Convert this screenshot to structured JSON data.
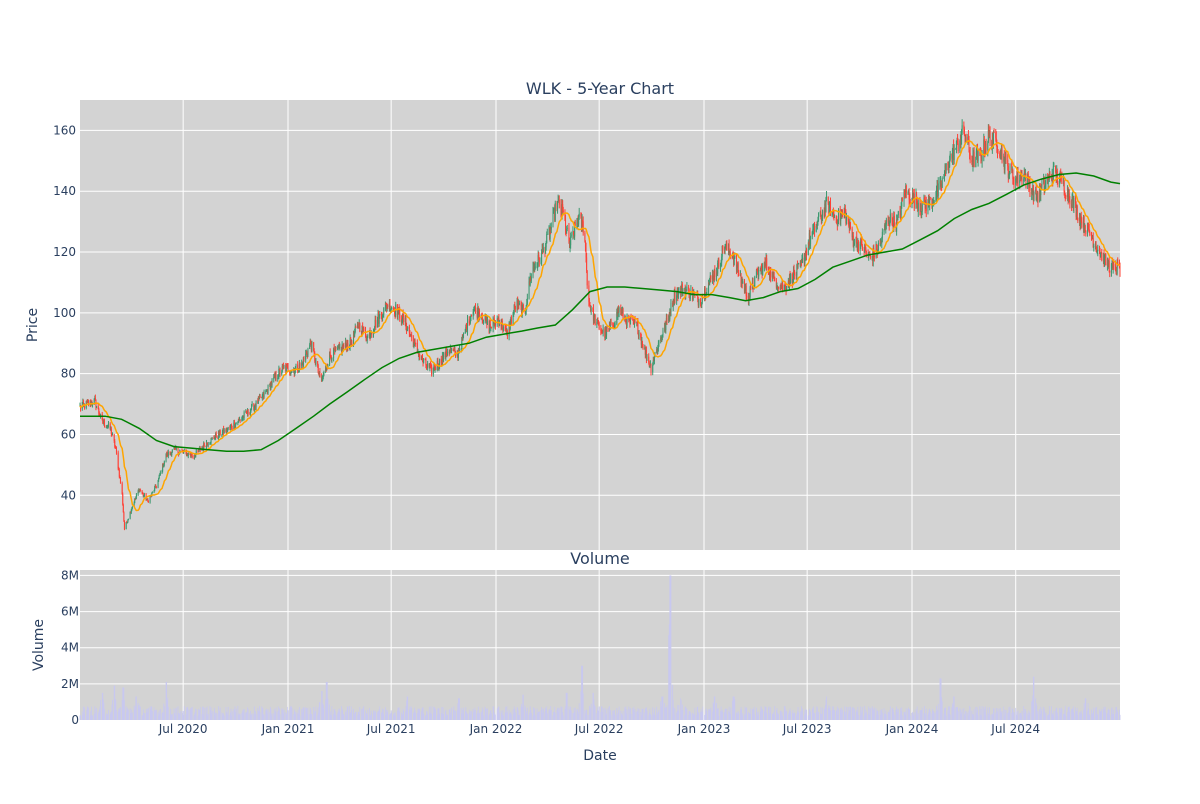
{
  "chart_data": [
    {
      "type": "candlestick",
      "title": "WLK - 5-Year Chart",
      "xlabel": "",
      "ylabel": "Price",
      "ylim": [
        22,
        170
      ],
      "xlim": [
        "2020-01-02",
        "2024-12-31"
      ],
      "y_ticks": [
        40,
        60,
        80,
        100,
        120,
        140,
        160
      ],
      "grid": true,
      "legend": "none",
      "candle_up_color": "#3d9970",
      "candle_down_color": "#ff4136",
      "price_path": [
        [
          "2020-01-02",
          69
        ],
        [
          "2020-01-15",
          70
        ],
        [
          "2020-01-28",
          71
        ],
        [
          "2020-02-10",
          64
        ],
        [
          "2020-02-24",
          62
        ],
        [
          "2020-03-05",
          55
        ],
        [
          "2020-03-16",
          40
        ],
        [
          "2020-03-20",
          29
        ],
        [
          "2020-04-02",
          36
        ],
        [
          "2020-04-15",
          42
        ],
        [
          "2020-04-30",
          38
        ],
        [
          "2020-05-15",
          43
        ],
        [
          "2020-06-01",
          53
        ],
        [
          "2020-06-15",
          55
        ],
        [
          "2020-07-01",
          54
        ],
        [
          "2020-07-20",
          53
        ],
        [
          "2020-08-10",
          57
        ],
        [
          "2020-09-01",
          60
        ],
        [
          "2020-09-20",
          62
        ],
        [
          "2020-10-10",
          65
        ],
        [
          "2020-11-01",
          69
        ],
        [
          "2020-11-20",
          73
        ],
        [
          "2020-12-10",
          79
        ],
        [
          "2020-12-25",
          82
        ],
        [
          "2021-01-10",
          81
        ],
        [
          "2021-01-25",
          83
        ],
        [
          "2021-02-10",
          90
        ],
        [
          "2021-02-28",
          77
        ],
        [
          "2021-03-15",
          86
        ],
        [
          "2021-04-01",
          88
        ],
        [
          "2021-04-20",
          90
        ],
        [
          "2021-05-05",
          96
        ],
        [
          "2021-05-20",
          92
        ],
        [
          "2021-06-05",
          97
        ],
        [
          "2021-06-25",
          103
        ],
        [
          "2021-07-10",
          101
        ],
        [
          "2021-07-25",
          97
        ],
        [
          "2021-08-10",
          90
        ],
        [
          "2021-08-25",
          84
        ],
        [
          "2021-09-10",
          81
        ],
        [
          "2021-09-25",
          84
        ],
        [
          "2021-10-10",
          88
        ],
        [
          "2021-10-25",
          86
        ],
        [
          "2021-11-05",
          92
        ],
        [
          "2021-11-20",
          101
        ],
        [
          "2021-12-05",
          100
        ],
        [
          "2021-12-20",
          95
        ],
        [
          "2022-01-05",
          98
        ],
        [
          "2022-01-20",
          93
        ],
        [
          "2022-02-05",
          103
        ],
        [
          "2022-02-20",
          100
        ],
        [
          "2022-03-05",
          114
        ],
        [
          "2022-03-20",
          118
        ],
        [
          "2022-04-05",
          126
        ],
        [
          "2022-04-18",
          136
        ],
        [
          "2022-04-28",
          133
        ],
        [
          "2022-05-10",
          122
        ],
        [
          "2022-05-25",
          131
        ],
        [
          "2022-06-05",
          128
        ],
        [
          "2022-06-12",
          104
        ],
        [
          "2022-06-25",
          97
        ],
        [
          "2022-07-10",
          93
        ],
        [
          "2022-07-25",
          96
        ],
        [
          "2022-08-05",
          101
        ],
        [
          "2022-08-20",
          97
        ],
        [
          "2022-09-05",
          96
        ],
        [
          "2022-09-20",
          87
        ],
        [
          "2022-09-30",
          82
        ],
        [
          "2022-10-15",
          91
        ],
        [
          "2022-10-30",
          98
        ],
        [
          "2022-11-10",
          106
        ],
        [
          "2022-11-25",
          108
        ],
        [
          "2022-12-10",
          106
        ],
        [
          "2022-12-25",
          104
        ],
        [
          "2023-01-10",
          110
        ],
        [
          "2023-01-25",
          115
        ],
        [
          "2023-02-05",
          122
        ],
        [
          "2023-02-20",
          119
        ],
        [
          "2023-03-05",
          112
        ],
        [
          "2023-03-20",
          105
        ],
        [
          "2023-04-05",
          113
        ],
        [
          "2023-04-20",
          116
        ],
        [
          "2023-05-05",
          111
        ],
        [
          "2023-05-20",
          108
        ],
        [
          "2023-06-05",
          112
        ],
        [
          "2023-06-20",
          115
        ],
        [
          "2023-07-05",
          124
        ],
        [
          "2023-07-20",
          130
        ],
        [
          "2023-08-05",
          136
        ],
        [
          "2023-08-20",
          131
        ],
        [
          "2023-09-05",
          133
        ],
        [
          "2023-09-20",
          124
        ],
        [
          "2023-10-05",
          122
        ],
        [
          "2023-10-20",
          118
        ],
        [
          "2023-11-05",
          122
        ],
        [
          "2023-11-20",
          131
        ],
        [
          "2023-12-05",
          129
        ],
        [
          "2023-12-20",
          140
        ],
        [
          "2024-01-05",
          137
        ],
        [
          "2024-01-20",
          135
        ],
        [
          "2024-02-05",
          137
        ],
        [
          "2024-02-20",
          141
        ],
        [
          "2024-03-05",
          150
        ],
        [
          "2024-03-20",
          155
        ],
        [
          "2024-04-01",
          160
        ],
        [
          "2024-04-15",
          150
        ],
        [
          "2024-05-01",
          152
        ],
        [
          "2024-05-15",
          158
        ],
        [
          "2024-06-01",
          155
        ],
        [
          "2024-06-15",
          148
        ],
        [
          "2024-07-01",
          144
        ],
        [
          "2024-07-15",
          146
        ],
        [
          "2024-08-05",
          138
        ],
        [
          "2024-08-20",
          142
        ],
        [
          "2024-09-05",
          146
        ],
        [
          "2024-09-20",
          143
        ],
        [
          "2024-10-05",
          138
        ],
        [
          "2024-10-20",
          132
        ],
        [
          "2024-11-05",
          127
        ],
        [
          "2024-11-20",
          122
        ],
        [
          "2024-12-05",
          117
        ],
        [
          "2024-12-20",
          114
        ],
        [
          "2024-12-31",
          115
        ]
      ],
      "sma_short_color": "#ffa500",
      "sma_long_color": "#008000",
      "sma_long": [
        [
          "2020-01-02",
          66
        ],
        [
          "2020-02-15",
          66
        ],
        [
          "2020-03-15",
          65
        ],
        [
          "2020-04-15",
          62
        ],
        [
          "2020-05-15",
          58
        ],
        [
          "2020-06-15",
          56
        ],
        [
          "2020-07-15",
          55.5
        ],
        [
          "2020-08-15",
          55
        ],
        [
          "2020-09-15",
          54.5
        ],
        [
          "2020-10-15",
          54.5
        ],
        [
          "2020-11-15",
          55
        ],
        [
          "2020-12-15",
          58
        ],
        [
          "2021-01-15",
          62
        ],
        [
          "2021-02-15",
          66
        ],
        [
          "2021-03-15",
          70
        ],
        [
          "2021-04-15",
          74
        ],
        [
          "2021-05-15",
          78
        ],
        [
          "2021-06-15",
          82
        ],
        [
          "2021-07-15",
          85
        ],
        [
          "2021-08-15",
          87
        ],
        [
          "2021-09-15",
          88
        ],
        [
          "2021-10-15",
          89
        ],
        [
          "2021-11-15",
          90
        ],
        [
          "2021-12-15",
          92
        ],
        [
          "2022-01-15",
          93
        ],
        [
          "2022-02-15",
          94
        ],
        [
          "2022-03-15",
          95
        ],
        [
          "2022-04-15",
          96
        ],
        [
          "2022-05-15",
          101
        ],
        [
          "2022-06-15",
          107
        ],
        [
          "2022-07-15",
          108.5
        ],
        [
          "2022-08-15",
          108.5
        ],
        [
          "2022-09-15",
          108
        ],
        [
          "2022-10-15",
          107.5
        ],
        [
          "2022-11-15",
          107
        ],
        [
          "2022-12-15",
          106
        ],
        [
          "2023-01-15",
          106
        ],
        [
          "2023-02-15",
          105
        ],
        [
          "2023-03-15",
          104
        ],
        [
          "2023-04-15",
          105
        ],
        [
          "2023-05-15",
          107
        ],
        [
          "2023-06-15",
          108
        ],
        [
          "2023-07-15",
          111
        ],
        [
          "2023-08-15",
          115
        ],
        [
          "2023-09-15",
          117
        ],
        [
          "2023-10-15",
          119
        ],
        [
          "2023-11-15",
          120
        ],
        [
          "2023-12-15",
          121
        ],
        [
          "2024-01-15",
          124
        ],
        [
          "2024-02-15",
          127
        ],
        [
          "2024-03-15",
          131
        ],
        [
          "2024-04-15",
          134
        ],
        [
          "2024-05-15",
          136
        ],
        [
          "2024-06-15",
          139
        ],
        [
          "2024-07-15",
          142
        ],
        [
          "2024-08-15",
          144
        ],
        [
          "2024-09-15",
          145.5
        ],
        [
          "2024-10-15",
          146
        ],
        [
          "2024-11-15",
          145
        ],
        [
          "2024-12-15",
          143
        ],
        [
          "2024-12-31",
          142.5
        ]
      ]
    },
    {
      "type": "bar",
      "title": "Volume",
      "xlabel": "Date",
      "ylabel": "Volume",
      "ylim": [
        0,
        8300000
      ],
      "y_ticks": [
        0,
        2000000,
        4000000,
        6000000,
        8000000
      ],
      "y_tick_labels": [
        "0",
        "2M",
        "4M",
        "6M",
        "8M"
      ],
      "x_ticks": [
        "2020-07-01",
        "2021-01-01",
        "2021-07-01",
        "2022-01-01",
        "2022-07-01",
        "2023-01-01",
        "2023-07-01",
        "2024-01-01",
        "2024-07-01"
      ],
      "x_tick_labels": [
        "Jul 2020",
        "Jan 2021",
        "Jul 2021",
        "Jan 2022",
        "Jul 2022",
        "Jan 2023",
        "Jul 2023",
        "Jan 2024",
        "Jul 2024"
      ],
      "bar_color": "#c8c8f0",
      "baseline_volume": 600000,
      "volume_spikes": [
        [
          "2020-02-10",
          1500000
        ],
        [
          "2020-03-02",
          1900000
        ],
        [
          "2020-03-18",
          1800000
        ],
        [
          "2020-04-10",
          1300000
        ],
        [
          "2020-06-01",
          2100000
        ],
        [
          "2021-03-01",
          1600000
        ],
        [
          "2021-03-10",
          2100000
        ],
        [
          "2021-07-30",
          1300000
        ],
        [
          "2021-10-28",
          1200000
        ],
        [
          "2022-02-18",
          1400000
        ],
        [
          "2022-05-05",
          1500000
        ],
        [
          "2022-06-01",
          3000000
        ],
        [
          "2022-06-20",
          1500000
        ],
        [
          "2022-10-20",
          1300000
        ],
        [
          "2022-11-01",
          2900000
        ],
        [
          "2022-11-03",
          8000000
        ],
        [
          "2022-11-20",
          1200000
        ],
        [
          "2023-01-20",
          1300000
        ],
        [
          "2023-02-22",
          1300000
        ],
        [
          "2023-08-05",
          1300000
        ],
        [
          "2024-02-20",
          2300000
        ],
        [
          "2024-03-15",
          1300000
        ],
        [
          "2024-08-02",
          2400000
        ],
        [
          "2024-11-01",
          1200000
        ]
      ]
    }
  ]
}
